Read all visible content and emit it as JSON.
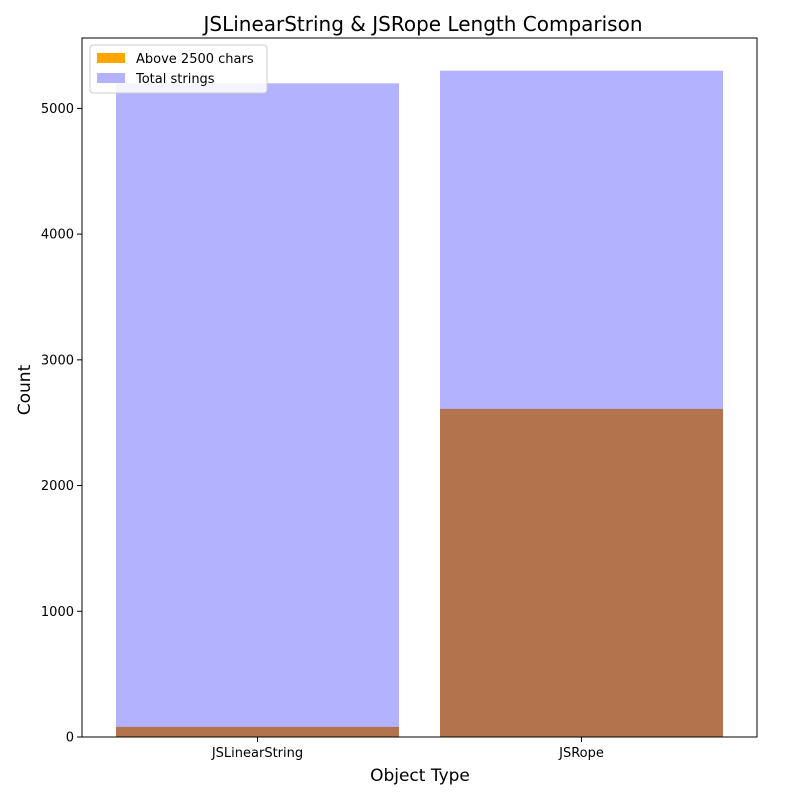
{
  "chart_data": {
    "type": "bar",
    "title": "JSLinearString & JSRope Length Comparison",
    "xlabel": "Object Type",
    "ylabel": "Count",
    "categories": [
      "JSLinearString",
      "JSRope"
    ],
    "ylim": [
      0,
      5560
    ],
    "yticks": [
      0,
      1000,
      2000,
      3000,
      4000,
      5000
    ],
    "grid": false,
    "legend_position": "top-left",
    "overlay": true,
    "series": [
      {
        "name": "Above 2500 chars",
        "values": [
          80,
          2610
        ],
        "color": "#ffa500",
        "opacity": 1.0
      },
      {
        "name": "Total strings",
        "values": [
          5200,
          5300
        ],
        "color": "#0000ff",
        "opacity": 0.3
      }
    ]
  }
}
